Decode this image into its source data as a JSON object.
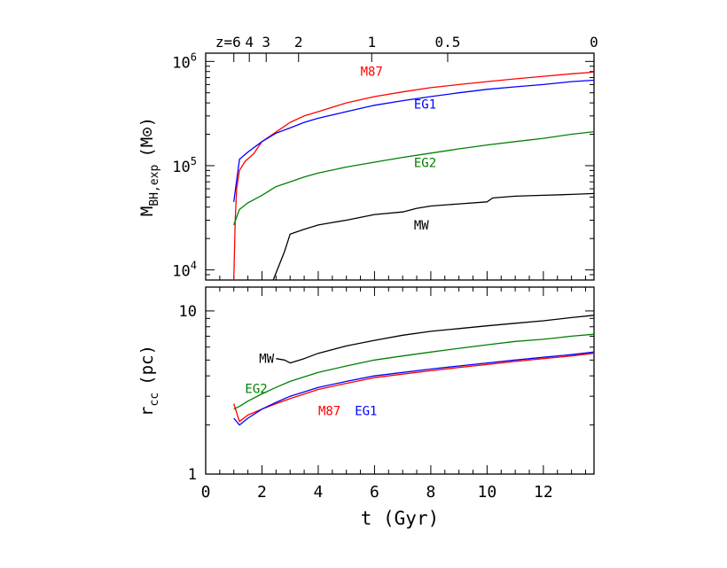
{
  "chart_data": [
    {
      "type": "line",
      "panel": "top",
      "ylabel_main": "M",
      "ylabel_sub": "BH,exp",
      "ylabel_unit": "(M⊙)",
      "yscale": "log",
      "ylim": [
        8000,
        1200000
      ],
      "xlim": [
        0,
        13.8
      ],
      "yticks": [
        {
          "value": 10000,
          "base": "10",
          "exp": "4"
        },
        {
          "value": 100000,
          "base": "10",
          "exp": "5"
        },
        {
          "value": 1000000,
          "base": "10",
          "exp": "6"
        }
      ],
      "redshift_ticks": [
        {
          "t": 1.0,
          "label": "z=6"
        },
        {
          "t": 1.55,
          "label": "4"
        },
        {
          "t": 2.15,
          "label": "3"
        },
        {
          "t": 3.3,
          "label": "2"
        },
        {
          "t": 5.9,
          "label": "1"
        },
        {
          "t": 8.6,
          "label": "0.5"
        },
        {
          "t": 13.8,
          "label": "0"
        }
      ],
      "series": [
        {
          "name": "M87",
          "color": "#ff0000",
          "x": [
            1.0,
            1.05,
            1.1,
            1.2,
            1.4,
            1.7,
            2.0,
            2.5,
            3.0,
            3.5,
            4.0,
            5.0,
            6.0,
            7.0,
            8.0,
            9.0,
            10.0,
            11.0,
            12.0,
            13.0,
            13.8
          ],
          "y": [
            8000,
            30000,
            60000,
            90000,
            110000,
            130000,
            170000,
            210000,
            260000,
            300000,
            330000,
            400000,
            460000,
            510000,
            560000,
            600000,
            640000,
            680000,
            720000,
            760000,
            790000
          ]
        },
        {
          "name": "EG1",
          "color": "#0000ff",
          "x": [
            1.0,
            1.2,
            1.5,
            2.0,
            2.5,
            3.0,
            3.5,
            4.0,
            5.0,
            6.0,
            7.0,
            8.0,
            9.0,
            10.0,
            11.0,
            12.0,
            13.0,
            13.8
          ],
          "y": [
            45000,
            115000,
            135000,
            170000,
            205000,
            230000,
            260000,
            285000,
            330000,
            380000,
            420000,
            460000,
            500000,
            540000,
            570000,
            600000,
            640000,
            660000
          ]
        },
        {
          "name": "EG2",
          "color": "#008000",
          "x": [
            1.0,
            1.2,
            1.5,
            2.0,
            2.5,
            3.0,
            3.5,
            4.0,
            5.0,
            6.0,
            7.0,
            8.0,
            9.0,
            10.0,
            11.0,
            12.0,
            13.0,
            13.8
          ],
          "y": [
            27000,
            38000,
            44000,
            52000,
            63000,
            70000,
            78000,
            85000,
            97000,
            108000,
            120000,
            132000,
            145000,
            158000,
            170000,
            183000,
            200000,
            212000
          ]
        },
        {
          "name": "MW",
          "color": "#000000",
          "x": [
            2.4,
            2.8,
            3.0,
            3.5,
            4.0,
            4.5,
            5.0,
            6.0,
            7.0,
            7.5,
            8.0,
            9.0,
            10.0,
            10.2,
            11.0,
            12.0,
            13.0,
            13.8
          ],
          "y": [
            8000,
            15000,
            22000,
            24500,
            27000,
            28500,
            30000,
            34000,
            36000,
            39000,
            41000,
            43000,
            45000,
            49000,
            51000,
            52000,
            53000,
            54000
          ]
        }
      ],
      "labels": [
        {
          "text": "M87",
          "t": 5.5,
          "value": 800000,
          "color": "#ff0000"
        },
        {
          "text": "EG1",
          "t": 7.4,
          "value": 390000,
          "color": "#0000ff"
        },
        {
          "text": "EG2",
          "t": 7.4,
          "value": 107000,
          "color": "#008000"
        },
        {
          "text": "MW",
          "t": 7.4,
          "value": 27000,
          "color": "#000000"
        }
      ]
    },
    {
      "type": "line",
      "panel": "bottom",
      "ylabel_main": "r",
      "ylabel_sub": "cc",
      "ylabel_unit": "(pc)",
      "xlabel": "t (Gyr)",
      "yscale": "log",
      "ylim": [
        1,
        14
      ],
      "xlim": [
        0,
        13.8
      ],
      "xticks": [
        0,
        2,
        4,
        6,
        8,
        10,
        12
      ],
      "yticks": [
        {
          "value": 1,
          "label": "1"
        },
        {
          "value": 10,
          "label": "10"
        }
      ],
      "series": [
        {
          "name": "MW",
          "color": "#000000",
          "x": [
            2.5,
            2.8,
            3.0,
            3.5,
            4.0,
            5.0,
            6.0,
            7.0,
            8.0,
            9.0,
            10.0,
            11.0,
            12.0,
            13.0,
            13.8
          ],
          "y": [
            5.1,
            5.0,
            4.8,
            5.1,
            5.5,
            6.1,
            6.6,
            7.1,
            7.5,
            7.8,
            8.1,
            8.4,
            8.7,
            9.1,
            9.4
          ]
        },
        {
          "name": "EG2",
          "color": "#008000",
          "x": [
            1.0,
            1.2,
            1.5,
            2.0,
            2.5,
            3.0,
            4.0,
            5.0,
            6.0,
            7.0,
            8.0,
            9.0,
            10.0,
            11.0,
            12.0,
            13.0,
            13.8
          ],
          "y": [
            2.5,
            2.6,
            2.8,
            3.1,
            3.4,
            3.7,
            4.2,
            4.6,
            5.0,
            5.3,
            5.6,
            5.9,
            6.2,
            6.5,
            6.7,
            7.0,
            7.2
          ]
        },
        {
          "name": "M87",
          "color": "#ff0000",
          "x": [
            1.0,
            1.2,
            1.5,
            2.0,
            2.5,
            3.0,
            4.0,
            5.0,
            6.0,
            7.0,
            8.0,
            9.0,
            10.0,
            11.0,
            12.0,
            13.0,
            13.8
          ],
          "y": [
            2.7,
            2.1,
            2.3,
            2.5,
            2.7,
            2.9,
            3.3,
            3.6,
            3.9,
            4.1,
            4.3,
            4.5,
            4.7,
            4.9,
            5.1,
            5.3,
            5.5
          ]
        },
        {
          "name": "EG1",
          "color": "#0000ff",
          "x": [
            1.0,
            1.2,
            1.5,
            2.0,
            2.5,
            3.0,
            4.0,
            5.0,
            6.0,
            7.0,
            8.0,
            9.0,
            10.0,
            11.0,
            12.0,
            13.0,
            13.8
          ],
          "y": [
            2.2,
            2.0,
            2.2,
            2.5,
            2.75,
            3.0,
            3.4,
            3.7,
            4.0,
            4.2,
            4.4,
            4.6,
            4.8,
            5.0,
            5.2,
            5.4,
            5.6
          ]
        }
      ],
      "labels": [
        {
          "text": "MW",
          "t": 1.9,
          "value": 5.1,
          "color": "#000000"
        },
        {
          "text": "EG2",
          "t": 1.4,
          "value": 3.35,
          "color": "#008000"
        },
        {
          "text": "M87",
          "t": 4.0,
          "value": 2.45,
          "color": "#ff0000"
        },
        {
          "text": "EG1",
          "t": 5.3,
          "value": 2.45,
          "color": "#0000ff"
        }
      ]
    }
  ]
}
